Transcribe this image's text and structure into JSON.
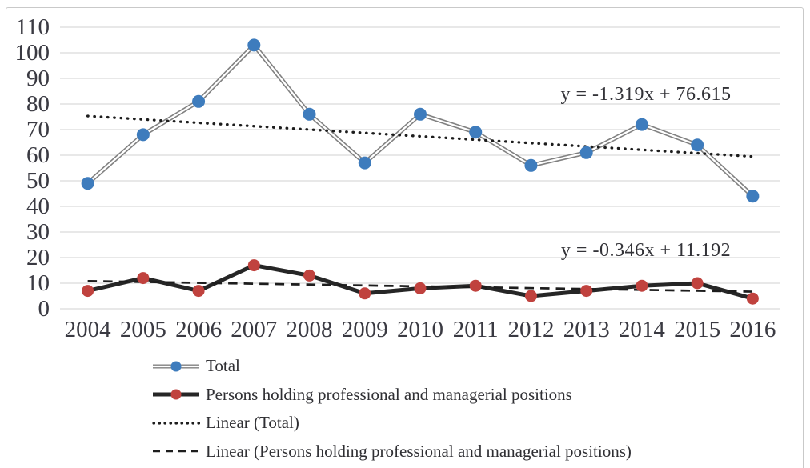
{
  "chart_data": {
    "type": "line",
    "title": "",
    "xlabel": "",
    "ylabel": "",
    "categories": [
      "2004",
      "2005",
      "2006",
      "2007",
      "2008",
      "2009",
      "2010",
      "2011",
      "2012",
      "2013",
      "2014",
      "2015",
      "2016"
    ],
    "y_ticks": [
      0,
      10,
      20,
      30,
      40,
      50,
      60,
      70,
      80,
      90,
      100,
      110
    ],
    "ylim": [
      0,
      110
    ],
    "grid": "horizontal",
    "legend_position": "bottom-left",
    "series": [
      {
        "name": "Total",
        "values": [
          49,
          68,
          81,
          103,
          76,
          57,
          76,
          69,
          56,
          61,
          72,
          64,
          44
        ],
        "marker_color": "#3e7cbd",
        "line_style": "double-gray"
      },
      {
        "name": "Persons holding professional and managerial positions",
        "values": [
          7,
          12,
          7,
          17,
          13,
          6,
          8,
          9,
          5,
          7,
          9,
          10,
          4
        ],
        "marker_color": "#c0423e",
        "line_style": "solid-black"
      }
    ],
    "trendlines": [
      {
        "for": "Total",
        "equation": "y = -1.319x + 76.615",
        "slope": -1.319,
        "intercept": 76.615,
        "style": "dotted"
      },
      {
        "for": "Persons holding professional and managerial positions",
        "equation": "y = -0.346x + 11.192",
        "slope": -0.346,
        "intercept": 11.192,
        "style": "dashed"
      }
    ],
    "legend": [
      "Total",
      "Persons holding professional and managerial positions",
      "Linear (Total)",
      "Linear (Persons holding professional and managerial positions)"
    ]
  },
  "colors": {
    "total_marker": "#3e7cbd",
    "persons_marker": "#c0423e",
    "total_line_outer": "#818181",
    "total_line_inner": "#ffffff",
    "persons_line": "#262626",
    "trend_line": "#1d1d1d",
    "gridline": "#d9d9d9",
    "axis_text": "#3a3a42",
    "border": "#c9c9c9"
  }
}
